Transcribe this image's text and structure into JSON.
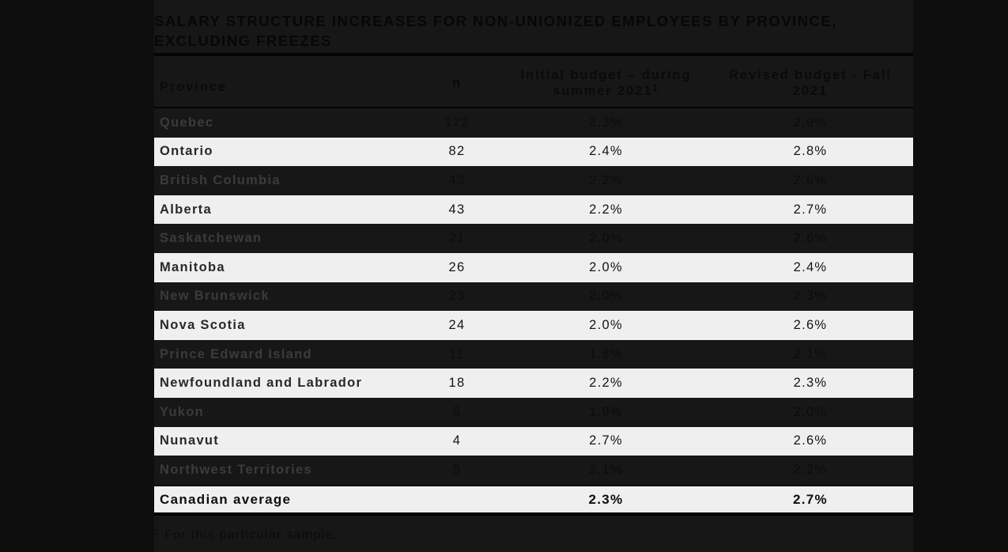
{
  "title": "SALARY STRUCTURE INCREASES FOR NON-UNIONIZED EMPLOYEES BY PROVINCE, EXCLUDING FREEZES",
  "table": {
    "columns": [
      {
        "label": "Province"
      },
      {
        "label": "n"
      },
      {
        "label": "Initial budget – during summer 2021",
        "sup": "1"
      },
      {
        "label": "Revised budget - Fall 2021"
      }
    ],
    "rows": [
      {
        "province": "Quebec",
        "n": "172",
        "initial": "2.3%",
        "revised": "2.9%"
      },
      {
        "province": "Ontario",
        "n": "82",
        "initial": "2.4%",
        "revised": "2.8%"
      },
      {
        "province": "British Columbia",
        "n": "43",
        "initial": "2.2%",
        "revised": "2.6%"
      },
      {
        "province": "Alberta",
        "n": "43",
        "initial": "2.2%",
        "revised": "2.7%"
      },
      {
        "province": "Saskatchewan",
        "n": "21",
        "initial": "2.0%",
        "revised": "2.6%"
      },
      {
        "province": "Manitoba",
        "n": "26",
        "initial": "2.0%",
        "revised": "2.4%"
      },
      {
        "province": "New Brunswick",
        "n": "23",
        "initial": "2.0%",
        "revised": "2.3%"
      },
      {
        "province": "Nova Scotia",
        "n": "24",
        "initial": "2.0%",
        "revised": "2.6%"
      },
      {
        "province": "Prince Edward Island",
        "n": "11",
        "initial": "1.8%",
        "revised": "2.1%"
      },
      {
        "province": "Newfoundland and Labrador",
        "n": "18",
        "initial": "2.2%",
        "revised": "2.3%"
      },
      {
        "province": "Yukon",
        "n": "5",
        "initial": "1.9%",
        "revised": "2.0%"
      },
      {
        "province": "Nunavut",
        "n": "4",
        "initial": "2.7%",
        "revised": "2.6%"
      },
      {
        "province": "Northwest Territories",
        "n": "5",
        "initial": "2.1%",
        "revised": "2.2%"
      }
    ],
    "average_row": {
      "province": "Canadian average",
      "n": "",
      "initial": "2.3%",
      "revised": "2.7%"
    }
  },
  "footnote_marker": "1",
  "footnote": "For this particular sample.",
  "colors": {
    "outer_bg": "#0e0e0e",
    "content_bg": "#171717",
    "light_row_bg": "#efefef",
    "dark_row_province_text": "#3b3b3b",
    "dark_row_value_text": "#0c0c0c",
    "light_row_text": "#151515",
    "title_text": "#070707",
    "footnote_text": "#0b0b0b"
  }
}
